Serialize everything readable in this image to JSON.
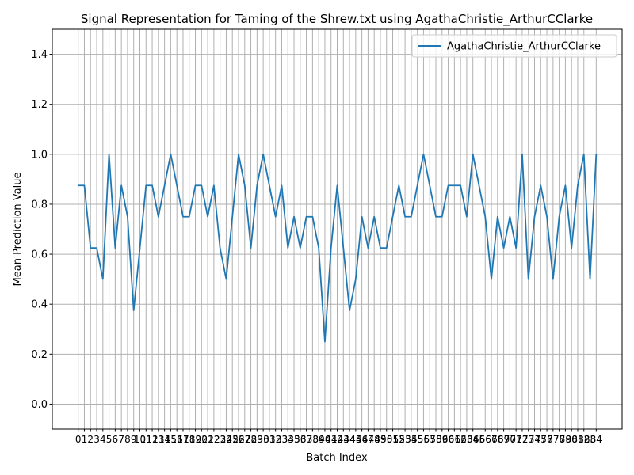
{
  "chart_data": {
    "type": "line",
    "title": "Signal Representation for Taming of the Shrew.txt using AgathaChristie_ArthurCClarke",
    "xlabel": "Batch Index",
    "ylabel": "Mean Prediction Value",
    "ylim": [
      -0.1,
      1.5
    ],
    "xlim": [
      -4.2,
      88.2
    ],
    "yticks": [
      0.0,
      0.2,
      0.4,
      0.6,
      0.8,
      1.0,
      1.2,
      1.4
    ],
    "grid": true,
    "legend_position": "top-right",
    "x": [
      0,
      1,
      2,
      3,
      4,
      5,
      6,
      7,
      8,
      9,
      10,
      11,
      12,
      13,
      14,
      15,
      16,
      17,
      18,
      19,
      20,
      21,
      22,
      23,
      24,
      25,
      26,
      27,
      28,
      29,
      30,
      31,
      32,
      33,
      34,
      35,
      36,
      37,
      38,
      39,
      40,
      41,
      42,
      43,
      44,
      45,
      46,
      47,
      48,
      49,
      50,
      51,
      52,
      53,
      54,
      55,
      56,
      57,
      58,
      59,
      60,
      61,
      62,
      63,
      64,
      65,
      66,
      67,
      68,
      69,
      70,
      71,
      72,
      73,
      74,
      75,
      76,
      77,
      78,
      79,
      80,
      81,
      82,
      83,
      84
    ],
    "series": [
      {
        "name": "AgathaChristie_ArthurCClarke",
        "color": "#1f77b4",
        "values": [
          0.875,
          0.875,
          0.625,
          0.625,
          0.5,
          1.0,
          0.625,
          0.875,
          0.75,
          0.375,
          0.625,
          0.875,
          0.875,
          0.75,
          0.875,
          1.0,
          0.875,
          0.75,
          0.75,
          0.875,
          0.875,
          0.75,
          0.875,
          0.625,
          0.5,
          0.75,
          1.0,
          0.875,
          0.625,
          0.875,
          1.0,
          0.875,
          0.75,
          0.875,
          0.625,
          0.75,
          0.625,
          0.75,
          0.75,
          0.625,
          0.25,
          0.625,
          0.875,
          0.625,
          0.375,
          0.5,
          0.75,
          0.625,
          0.75,
          0.625,
          0.625,
          0.75,
          0.875,
          0.75,
          0.75,
          0.875,
          1.0,
          0.875,
          0.75,
          0.75,
          0.875,
          0.875,
          0.875,
          0.75,
          1.0,
          0.875,
          0.75,
          0.5,
          0.75,
          0.625,
          0.75,
          0.625,
          1.0,
          0.5,
          0.75,
          0.875,
          0.75,
          0.5,
          0.75,
          0.875,
          0.625,
          0.875,
          1.0,
          0.5,
          1.0
        ]
      }
    ]
  }
}
